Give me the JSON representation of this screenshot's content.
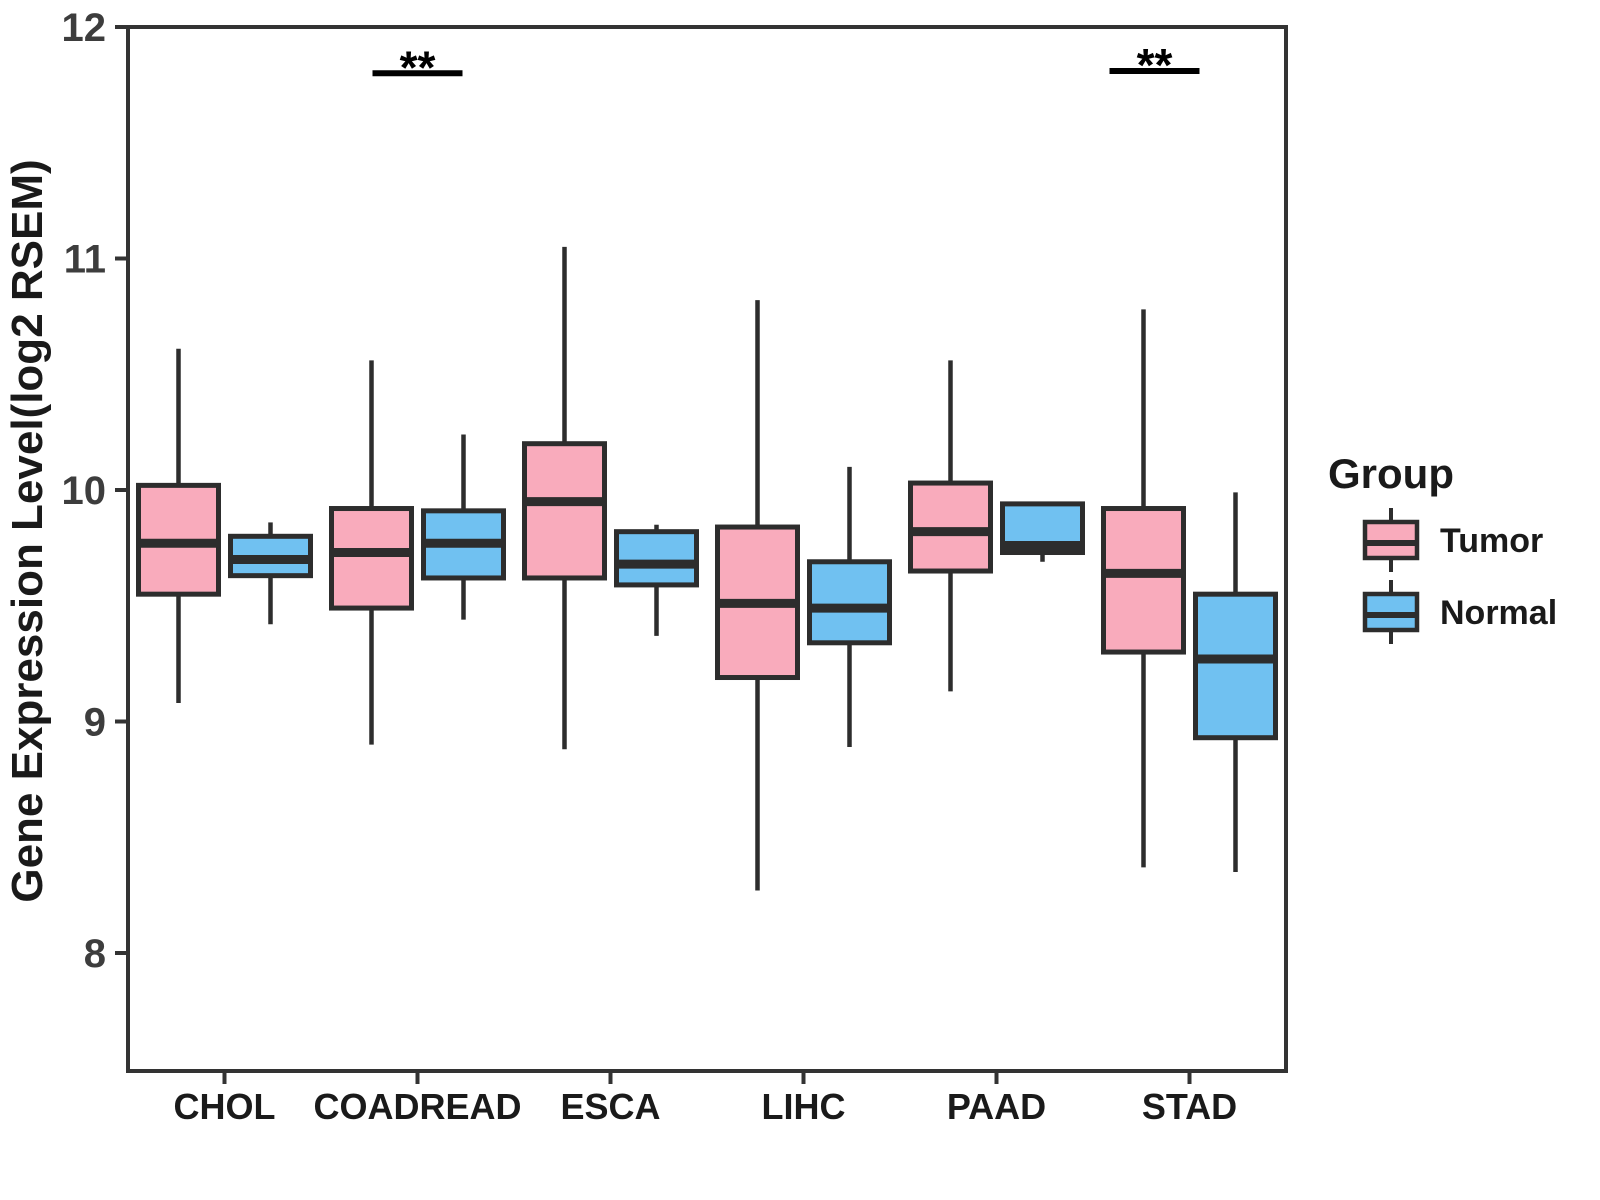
{
  "page": {
    "background_color": "#ffffff"
  },
  "chart_data": {
    "type": "boxplot",
    "title": "",
    "xlabel": "",
    "ylabel": "Gene Expression Level(log2 RSEM)",
    "categories": [
      "CHOL",
      "COADREAD",
      "ESCA",
      "LIHC",
      "PAAD",
      "STAD"
    ],
    "y_ticks": [
      "12",
      "11",
      "10",
      "9",
      "8"
    ],
    "y_tick_values": [
      12,
      11,
      10,
      9,
      8
    ],
    "ylim": [
      7.49,
      12
    ],
    "grid": false,
    "colors": {
      "tumor_fill": "#F9ABBC",
      "normal_fill": "#70C1F1",
      "line": "#2D2D2D",
      "axis": "#333333",
      "tick_label": "#3D3D3D",
      "text": "#1A1A1A"
    },
    "legend": {
      "title": "Group",
      "position": "right",
      "entries": [
        {
          "label": "Tumor",
          "color": "#F9ABBC"
        },
        {
          "label": "Normal",
          "color": "#70C1F1"
        }
      ]
    },
    "series": [
      {
        "name": "Tumor",
        "color": "#F9ABBC",
        "boxes": [
          {
            "category": "CHOL",
            "min": 9.08,
            "q1": 9.55,
            "median": 9.77,
            "q3": 10.02,
            "max": 10.61
          },
          {
            "category": "COADREAD",
            "min": 8.9,
            "q1": 9.49,
            "median": 9.73,
            "q3": 9.92,
            "max": 10.56
          },
          {
            "category": "ESCA",
            "min": 8.88,
            "q1": 9.62,
            "median": 9.95,
            "q3": 10.2,
            "max": 11.05
          },
          {
            "category": "LIHC",
            "min": 8.27,
            "q1": 9.19,
            "median": 9.51,
            "q3": 9.84,
            "max": 10.82
          },
          {
            "category": "PAAD",
            "min": 9.13,
            "q1": 9.65,
            "median": 9.82,
            "q3": 10.03,
            "max": 10.56
          },
          {
            "category": "STAD",
            "min": 8.37,
            "q1": 9.3,
            "median": 9.64,
            "q3": 9.92,
            "max": 10.78
          }
        ]
      },
      {
        "name": "Normal",
        "color": "#70C1F1",
        "boxes": [
          {
            "category": "CHOL",
            "min": 9.42,
            "q1": 9.63,
            "median": 9.7,
            "q3": 9.8,
            "max": 9.86
          },
          {
            "category": "COADREAD",
            "min": 9.44,
            "q1": 9.62,
            "median": 9.77,
            "q3": 9.91,
            "max": 10.24
          },
          {
            "category": "ESCA",
            "min": 9.37,
            "q1": 9.59,
            "median": 9.68,
            "q3": 9.82,
            "max": 9.85
          },
          {
            "category": "LIHC",
            "min": 8.89,
            "q1": 9.34,
            "median": 9.49,
            "q3": 9.69,
            "max": 10.1
          },
          {
            "category": "PAAD",
            "min": 9.69,
            "q1": 9.73,
            "median": 9.76,
            "q3": 9.94,
            "max": 9.94
          },
          {
            "category": "STAD",
            "min": 8.35,
            "q1": 8.93,
            "median": 9.27,
            "q3": 9.55,
            "max": 9.99
          }
        ]
      }
    ],
    "significance": [
      {
        "category": "COADREAD",
        "label": "**",
        "y": 11.8,
        "dx": 0
      },
      {
        "category": "STAD",
        "label": "**",
        "y": 11.81,
        "dx": -35
      }
    ]
  }
}
